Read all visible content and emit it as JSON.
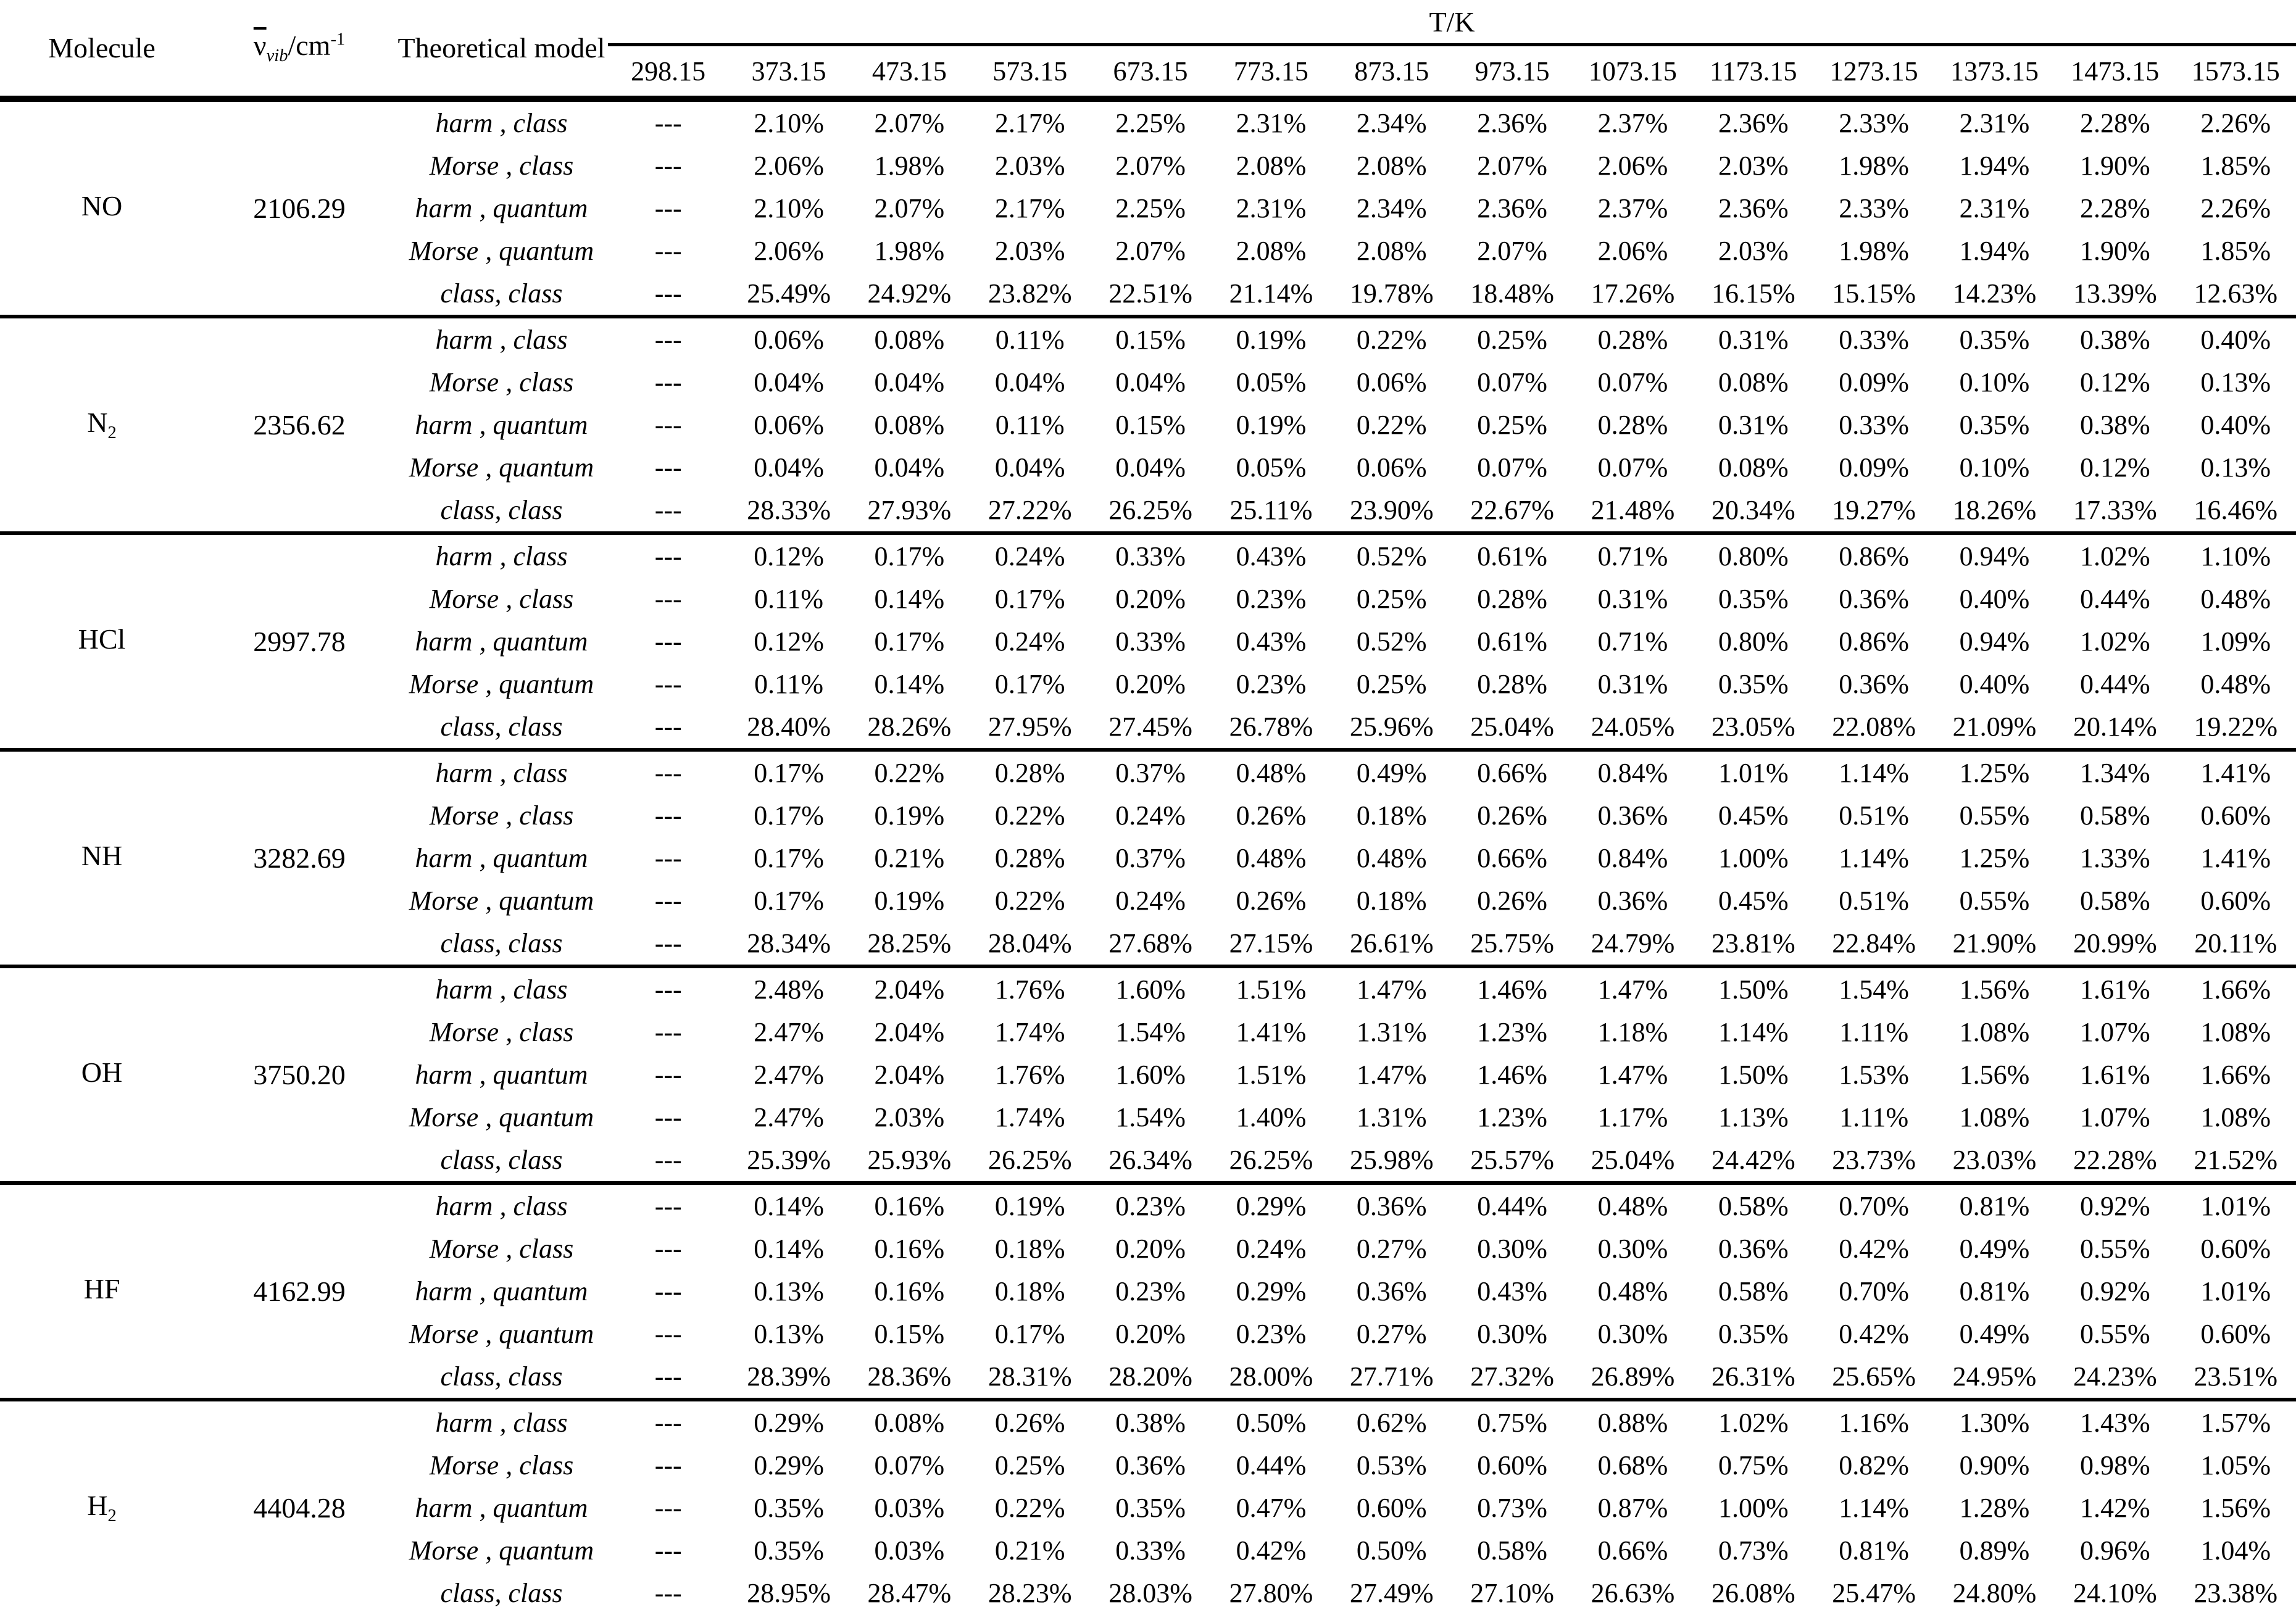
{
  "header": {
    "molecule": "Molecule",
    "wavenumber": {
      "symbol": "ν",
      "subscript": "vib",
      "unit": "/cm",
      "exponent": "-1"
    },
    "model": "Theoretical model",
    "temperature_group": "T/K"
  },
  "temperatures": [
    "298.15",
    "373.15",
    "473.15",
    "573.15",
    "673.15",
    "773.15",
    "873.15",
    "973.15",
    "1073.15",
    "1173.15",
    "1273.15",
    "1373.15",
    "1473.15",
    "1573.15"
  ],
  "molecules": [
    {
      "name": "NO",
      "name_sub": "",
      "wavenumber": "2106.29",
      "rows": [
        {
          "model": "harm , class",
          "values": [
            "---",
            "2.10%",
            "2.07%",
            "2.17%",
            "2.25%",
            "2.31%",
            "2.34%",
            "2.36%",
            "2.37%",
            "2.36%",
            "2.33%",
            "2.31%",
            "2.28%",
            "2.26%"
          ]
        },
        {
          "model": "Morse , class",
          "values": [
            "---",
            "2.06%",
            "1.98%",
            "2.03%",
            "2.07%",
            "2.08%",
            "2.08%",
            "2.07%",
            "2.06%",
            "2.03%",
            "1.98%",
            "1.94%",
            "1.90%",
            "1.85%"
          ]
        },
        {
          "model": "harm , quantum",
          "values": [
            "---",
            "2.10%",
            "2.07%",
            "2.17%",
            "2.25%",
            "2.31%",
            "2.34%",
            "2.36%",
            "2.37%",
            "2.36%",
            "2.33%",
            "2.31%",
            "2.28%",
            "2.26%"
          ]
        },
        {
          "model": "Morse , quantum",
          "values": [
            "---",
            "2.06%",
            "1.98%",
            "2.03%",
            "2.07%",
            "2.08%",
            "2.08%",
            "2.07%",
            "2.06%",
            "2.03%",
            "1.98%",
            "1.94%",
            "1.90%",
            "1.85%"
          ]
        },
        {
          "model": "class, class",
          "values": [
            "---",
            "25.49%",
            "24.92%",
            "23.82%",
            "22.51%",
            "21.14%",
            "19.78%",
            "18.48%",
            "17.26%",
            "16.15%",
            "15.15%",
            "14.23%",
            "13.39%",
            "12.63%"
          ]
        }
      ]
    },
    {
      "name": "N",
      "name_sub": "2",
      "wavenumber": "2356.62",
      "rows": [
        {
          "model": "harm , class",
          "values": [
            "---",
            "0.06%",
            "0.08%",
            "0.11%",
            "0.15%",
            "0.19%",
            "0.22%",
            "0.25%",
            "0.28%",
            "0.31%",
            "0.33%",
            "0.35%",
            "0.38%",
            "0.40%"
          ]
        },
        {
          "model": "Morse , class",
          "values": [
            "---",
            "0.04%",
            "0.04%",
            "0.04%",
            "0.04%",
            "0.05%",
            "0.06%",
            "0.07%",
            "0.07%",
            "0.08%",
            "0.09%",
            "0.10%",
            "0.12%",
            "0.13%"
          ]
        },
        {
          "model": "harm , quantum",
          "values": [
            "---",
            "0.06%",
            "0.08%",
            "0.11%",
            "0.15%",
            "0.19%",
            "0.22%",
            "0.25%",
            "0.28%",
            "0.31%",
            "0.33%",
            "0.35%",
            "0.38%",
            "0.40%"
          ]
        },
        {
          "model": "Morse , quantum",
          "values": [
            "---",
            "0.04%",
            "0.04%",
            "0.04%",
            "0.04%",
            "0.05%",
            "0.06%",
            "0.07%",
            "0.07%",
            "0.08%",
            "0.09%",
            "0.10%",
            "0.12%",
            "0.13%"
          ]
        },
        {
          "model": "class, class",
          "values": [
            "---",
            "28.33%",
            "27.93%",
            "27.22%",
            "26.25%",
            "25.11%",
            "23.90%",
            "22.67%",
            "21.48%",
            "20.34%",
            "19.27%",
            "18.26%",
            "17.33%",
            "16.46%"
          ]
        }
      ]
    },
    {
      "name": "HCl",
      "name_sub": "",
      "wavenumber": "2997.78",
      "rows": [
        {
          "model": "harm , class",
          "values": [
            "---",
            "0.12%",
            "0.17%",
            "0.24%",
            "0.33%",
            "0.43%",
            "0.52%",
            "0.61%",
            "0.71%",
            "0.80%",
            "0.86%",
            "0.94%",
            "1.02%",
            "1.10%"
          ]
        },
        {
          "model": "Morse , class",
          "values": [
            "---",
            "0.11%",
            "0.14%",
            "0.17%",
            "0.20%",
            "0.23%",
            "0.25%",
            "0.28%",
            "0.31%",
            "0.35%",
            "0.36%",
            "0.40%",
            "0.44%",
            "0.48%"
          ]
        },
        {
          "model": "harm , quantum",
          "values": [
            "---",
            "0.12%",
            "0.17%",
            "0.24%",
            "0.33%",
            "0.43%",
            "0.52%",
            "0.61%",
            "0.71%",
            "0.80%",
            "0.86%",
            "0.94%",
            "1.02%",
            "1.09%"
          ]
        },
        {
          "model": "Morse , quantum",
          "values": [
            "---",
            "0.11%",
            "0.14%",
            "0.17%",
            "0.20%",
            "0.23%",
            "0.25%",
            "0.28%",
            "0.31%",
            "0.35%",
            "0.36%",
            "0.40%",
            "0.44%",
            "0.48%"
          ]
        },
        {
          "model": "class, class",
          "values": [
            "---",
            "28.40%",
            "28.26%",
            "27.95%",
            "27.45%",
            "26.78%",
            "25.96%",
            "25.04%",
            "24.05%",
            "23.05%",
            "22.08%",
            "21.09%",
            "20.14%",
            "19.22%"
          ]
        }
      ]
    },
    {
      "name": "NH",
      "name_sub": "",
      "wavenumber": "3282.69",
      "rows": [
        {
          "model": "harm , class",
          "values": [
            "---",
            "0.17%",
            "0.22%",
            "0.28%",
            "0.37%",
            "0.48%",
            "0.49%",
            "0.66%",
            "0.84%",
            "1.01%",
            "1.14%",
            "1.25%",
            "1.34%",
            "1.41%"
          ]
        },
        {
          "model": "Morse , class",
          "values": [
            "---",
            "0.17%",
            "0.19%",
            "0.22%",
            "0.24%",
            "0.26%",
            "0.18%",
            "0.26%",
            "0.36%",
            "0.45%",
            "0.51%",
            "0.55%",
            "0.58%",
            "0.60%"
          ]
        },
        {
          "model": "harm , quantum",
          "values": [
            "---",
            "0.17%",
            "0.21%",
            "0.28%",
            "0.37%",
            "0.48%",
            "0.48%",
            "0.66%",
            "0.84%",
            "1.00%",
            "1.14%",
            "1.25%",
            "1.33%",
            "1.41%"
          ]
        },
        {
          "model": "Morse , quantum",
          "values": [
            "---",
            "0.17%",
            "0.19%",
            "0.22%",
            "0.24%",
            "0.26%",
            "0.18%",
            "0.26%",
            "0.36%",
            "0.45%",
            "0.51%",
            "0.55%",
            "0.58%",
            "0.60%"
          ]
        },
        {
          "model": "class, class",
          "values": [
            "---",
            "28.34%",
            "28.25%",
            "28.04%",
            "27.68%",
            "27.15%",
            "26.61%",
            "25.75%",
            "24.79%",
            "23.81%",
            "22.84%",
            "21.90%",
            "20.99%",
            "20.11%"
          ]
        }
      ]
    },
    {
      "name": "OH",
      "name_sub": "",
      "wavenumber": "3750.20",
      "rows": [
        {
          "model": "harm , class",
          "values": [
            "---",
            "2.48%",
            "2.04%",
            "1.76%",
            "1.60%",
            "1.51%",
            "1.47%",
            "1.46%",
            "1.47%",
            "1.50%",
            "1.54%",
            "1.56%",
            "1.61%",
            "1.66%"
          ]
        },
        {
          "model": "Morse , class",
          "values": [
            "---",
            "2.47%",
            "2.04%",
            "1.74%",
            "1.54%",
            "1.41%",
            "1.31%",
            "1.23%",
            "1.18%",
            "1.14%",
            "1.11%",
            "1.08%",
            "1.07%",
            "1.08%"
          ]
        },
        {
          "model": "harm , quantum",
          "values": [
            "---",
            "2.47%",
            "2.04%",
            "1.76%",
            "1.60%",
            "1.51%",
            "1.47%",
            "1.46%",
            "1.47%",
            "1.50%",
            "1.53%",
            "1.56%",
            "1.61%",
            "1.66%"
          ]
        },
        {
          "model": "Morse , quantum",
          "values": [
            "---",
            "2.47%",
            "2.03%",
            "1.74%",
            "1.54%",
            "1.40%",
            "1.31%",
            "1.23%",
            "1.17%",
            "1.13%",
            "1.11%",
            "1.08%",
            "1.07%",
            "1.08%"
          ]
        },
        {
          "model": "class, class",
          "values": [
            "---",
            "25.39%",
            "25.93%",
            "26.25%",
            "26.34%",
            "26.25%",
            "25.98%",
            "25.57%",
            "25.04%",
            "24.42%",
            "23.73%",
            "23.03%",
            "22.28%",
            "21.52%"
          ]
        }
      ]
    },
    {
      "name": "HF",
      "name_sub": "",
      "wavenumber": "4162.99",
      "rows": [
        {
          "model": "harm , class",
          "values": [
            "---",
            "0.14%",
            "0.16%",
            "0.19%",
            "0.23%",
            "0.29%",
            "0.36%",
            "0.44%",
            "0.48%",
            "0.58%",
            "0.70%",
            "0.81%",
            "0.92%",
            "1.01%"
          ]
        },
        {
          "model": "Morse , class",
          "values": [
            "---",
            "0.14%",
            "0.16%",
            "0.18%",
            "0.20%",
            "0.24%",
            "0.27%",
            "0.30%",
            "0.30%",
            "0.36%",
            "0.42%",
            "0.49%",
            "0.55%",
            "0.60%"
          ]
        },
        {
          "model": "harm , quantum",
          "values": [
            "---",
            "0.13%",
            "0.16%",
            "0.18%",
            "0.23%",
            "0.29%",
            "0.36%",
            "0.43%",
            "0.48%",
            "0.58%",
            "0.70%",
            "0.81%",
            "0.92%",
            "1.01%"
          ]
        },
        {
          "model": "Morse , quantum",
          "values": [
            "---",
            "0.13%",
            "0.15%",
            "0.17%",
            "0.20%",
            "0.23%",
            "0.27%",
            "0.30%",
            "0.30%",
            "0.35%",
            "0.42%",
            "0.49%",
            "0.55%",
            "0.60%"
          ]
        },
        {
          "model": "class, class",
          "values": [
            "---",
            "28.39%",
            "28.36%",
            "28.31%",
            "28.20%",
            "28.00%",
            "27.71%",
            "27.32%",
            "26.89%",
            "26.31%",
            "25.65%",
            "24.95%",
            "24.23%",
            "23.51%"
          ]
        }
      ]
    },
    {
      "name": "H",
      "name_sub": "2",
      "wavenumber": "4404.28",
      "rows": [
        {
          "model": "harm , class",
          "values": [
            "---",
            "0.29%",
            "0.08%",
            "0.26%",
            "0.38%",
            "0.50%",
            "0.62%",
            "0.75%",
            "0.88%",
            "1.02%",
            "1.16%",
            "1.30%",
            "1.43%",
            "1.57%"
          ]
        },
        {
          "model": "Morse , class",
          "values": [
            "---",
            "0.29%",
            "0.07%",
            "0.25%",
            "0.36%",
            "0.44%",
            "0.53%",
            "0.60%",
            "0.68%",
            "0.75%",
            "0.82%",
            "0.90%",
            "0.98%",
            "1.05%"
          ]
        },
        {
          "model": "harm , quantum",
          "values": [
            "---",
            "0.35%",
            "0.03%",
            "0.22%",
            "0.35%",
            "0.47%",
            "0.60%",
            "0.73%",
            "0.87%",
            "1.00%",
            "1.14%",
            "1.28%",
            "1.42%",
            "1.56%"
          ]
        },
        {
          "model": "Morse , quantum",
          "values": [
            "---",
            "0.35%",
            "0.03%",
            "0.21%",
            "0.33%",
            "0.42%",
            "0.50%",
            "0.58%",
            "0.66%",
            "0.73%",
            "0.81%",
            "0.89%",
            "0.96%",
            "1.04%"
          ]
        },
        {
          "model": "class, class",
          "values": [
            "---",
            "28.95%",
            "28.47%",
            "28.23%",
            "28.03%",
            "27.80%",
            "27.49%",
            "27.10%",
            "26.63%",
            "26.08%",
            "25.47%",
            "24.80%",
            "24.10%",
            "23.38%"
          ]
        }
      ]
    }
  ]
}
